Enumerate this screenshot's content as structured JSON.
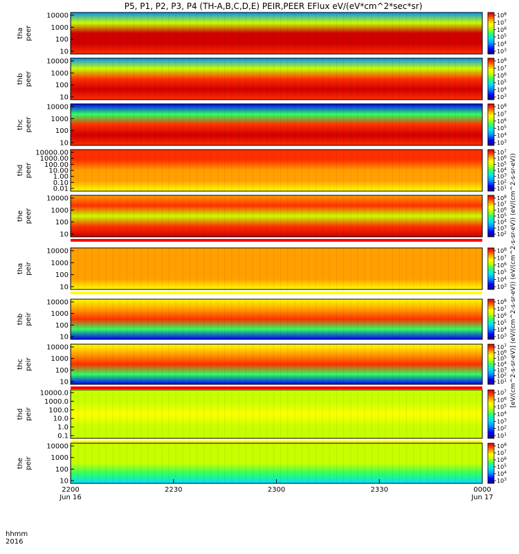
{
  "title": "P5, P1, P2, P3, P4 (TH-A,B,C,D,E) PEIR,PEER EFlux eV/(eV*cm^2*sec*sr)",
  "colorbar_unit_label": "[eV/(cm^2-s-sr-eV)] (eV/(cm^2-s-sr-eV)) (eV/(cm^2-s-sr-eV)) (eV/(cm^2-s-sr-eV))",
  "time_axis": {
    "row_label_1": "hhmm",
    "row_label_2": "2016",
    "ticks": [
      {
        "label": "2200",
        "sub": "Jun 16",
        "minutes": 0
      },
      {
        "label": "2230",
        "sub": "",
        "minutes": 30
      },
      {
        "label": "2300",
        "sub": "",
        "minutes": 60
      },
      {
        "label": "2330",
        "sub": "",
        "minutes": 90
      },
      {
        "label": "0000",
        "sub": "Jun 17",
        "minutes": 120
      }
    ],
    "range_minutes": [
      0,
      120
    ]
  },
  "colors": {
    "spectrum": [
      "#1a0070",
      "#0000ff",
      "#0090ff",
      "#00e0ff",
      "#30ff60",
      "#c8ff00",
      "#ffff00",
      "#ffa000",
      "#ff3000",
      "#d00000"
    ]
  },
  "chart_data": [
    {
      "type": "heatmap",
      "probe": "tha",
      "ylabel": [
        "tha",
        "peer"
      ],
      "yticks": [
        "10000",
        "1000",
        "100",
        "10"
      ],
      "ylog": true,
      "ylim": [
        10,
        20000
      ],
      "colorbar_ticks": [
        "10^8",
        "10^7",
        "10^6",
        "10^5",
        "10^4",
        "10^3"
      ],
      "profile": [
        0.25,
        0.55,
        0.9,
        0.95,
        0.85
      ],
      "flag": null
    },
    {
      "type": "heatmap",
      "probe": "thb",
      "ylabel": [
        "thb",
        "peer"
      ],
      "yticks": [
        "10000",
        "1000",
        "100",
        "10"
      ],
      "ylog": true,
      "ylim": [
        10,
        20000
      ],
      "colorbar_ticks": [
        "10^8",
        "10^7",
        "10^6",
        "10^5",
        "10^4",
        "10^3"
      ],
      "profile": [
        0.2,
        0.5,
        0.85,
        0.95,
        0.85
      ],
      "flag": null
    },
    {
      "type": "heatmap",
      "probe": "thc",
      "ylabel": [
        "thc",
        "peer"
      ],
      "yticks": [
        "10000",
        "1000",
        "100",
        "10"
      ],
      "ylog": true,
      "ylim": [
        10,
        20000
      ],
      "colorbar_ticks": [
        "10^8",
        "10^7",
        "10^6",
        "10^5",
        "10^4",
        "10^3"
      ],
      "profile": [
        0.15,
        0.45,
        0.85,
        0.9,
        0.8
      ],
      "flag": null
    },
    {
      "type": "heatmap",
      "probe": "thd",
      "ylabel": [
        "thd",
        "peer"
      ],
      "yticks": [
        "10000.00",
        "1000.00",
        "100.00",
        "10.00",
        "1.00",
        "0.10",
        "0.01"
      ],
      "ylog": true,
      "ylim": [
        0.01,
        20000
      ],
      "colorbar_ticks": [
        "10^7",
        "10^6",
        "10^5",
        "10^4",
        "10^3",
        "10^2",
        "10^1"
      ],
      "profile": [
        0.8,
        0.85,
        0.75,
        0.7,
        0.6
      ],
      "flag": null
    },
    {
      "type": "heatmap",
      "probe": "the",
      "ylabel": [
        "the",
        "peer"
      ],
      "yticks": [
        "10000",
        "1000",
        "100",
        "10"
      ],
      "ylog": true,
      "ylim": [
        10,
        20000
      ],
      "colorbar_ticks": [
        "10^8",
        "10^7",
        "10^6",
        "10^5",
        "10^4",
        "10^3",
        "10^2"
      ],
      "profile": [
        0.7,
        0.8,
        0.5,
        0.85,
        0.95
      ],
      "flag": "red"
    },
    {
      "type": "heatmap",
      "probe": "tha",
      "ylabel": [
        "tha",
        "peir"
      ],
      "yticks": [
        "10000",
        "1000",
        "100",
        "10"
      ],
      "ylog": true,
      "ylim": [
        10,
        20000
      ],
      "colorbar_ticks": [
        "10^8",
        "10^7",
        "10^6",
        "10^5",
        "10^4",
        "10^3"
      ],
      "profile": [
        0.7,
        0.78,
        0.75,
        0.7,
        0.65
      ],
      "flag": "yellow"
    },
    {
      "type": "heatmap",
      "probe": "thb",
      "ylabel": [
        "thb",
        "peir"
      ],
      "yticks": [
        "10000",
        "1000",
        "100",
        "10"
      ],
      "ylog": true,
      "ylim": [
        10,
        20000
      ],
      "colorbar_ticks": [
        "10^8",
        "10^7",
        "10^6",
        "10^5",
        "10^4",
        "10^3"
      ],
      "profile": [
        0.6,
        0.75,
        0.85,
        0.4,
        0.15
      ],
      "flag": null
    },
    {
      "type": "heatmap",
      "probe": "thc",
      "ylabel": [
        "thc",
        "peir"
      ],
      "yticks": [
        "10000",
        "1000",
        "100",
        "10"
      ],
      "ylog": true,
      "ylim": [
        10,
        20000
      ],
      "colorbar_ticks": [
        "10^7",
        "10^6",
        "10^5",
        "10^4",
        "10^3",
        "10^2",
        "10^1"
      ],
      "profile": [
        0.6,
        0.75,
        0.85,
        0.4,
        0.15
      ],
      "flag": "red"
    },
    {
      "type": "heatmap",
      "probe": "thd",
      "ylabel": [
        "thd",
        "peir"
      ],
      "yticks": [
        "10000.0",
        "1000.0",
        "100.0",
        "10.0",
        "1.0",
        "0.1"
      ],
      "ylog": true,
      "ylim": [
        0.1,
        20000
      ],
      "colorbar_ticks": [
        "10^7",
        "10^6",
        "10^5",
        "10^4",
        "10^3",
        "10^2",
        "10^1"
      ],
      "profile": [
        0.5,
        0.55,
        0.6,
        0.55,
        0.5
      ],
      "flag": "yellow"
    },
    {
      "type": "heatmap",
      "probe": "the",
      "ylabel": [
        "the",
        "peir"
      ],
      "yticks": [
        "10000",
        "1000",
        "100",
        "10"
      ],
      "ylog": true,
      "ylim": [
        10,
        20000
      ],
      "colorbar_ticks": [
        "10^8",
        "10^7",
        "10^6",
        "10^5",
        "10^4",
        "10^3"
      ],
      "profile": [
        0.5,
        0.55,
        0.5,
        0.4,
        0.3
      ],
      "flag": null
    }
  ]
}
